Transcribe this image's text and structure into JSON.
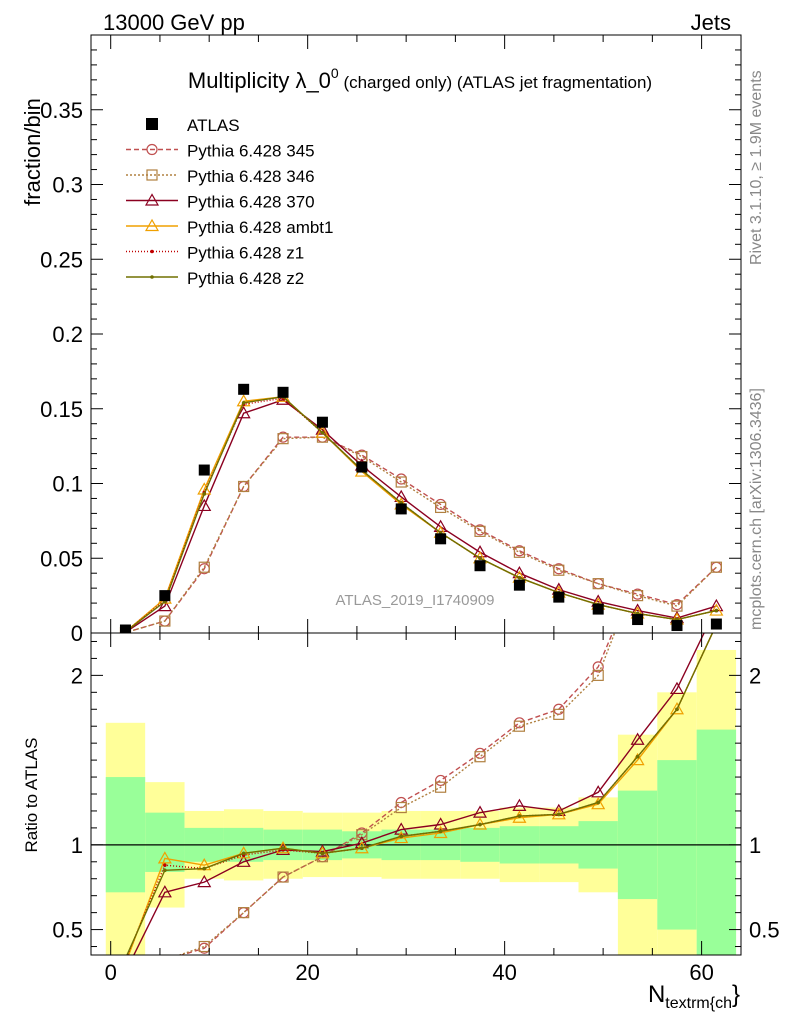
{
  "header": {
    "left": "13000 GeV pp",
    "right": "Jets"
  },
  "side_labels": {
    "rivet": "Rivet 3.1.10, ≥ 1.9M events",
    "mcplots": "mcplots.cern.ch [arXiv:1306.3436]"
  },
  "title": {
    "main": "Multiplicity λ_0",
    "sup": "0",
    "suffix": " (charged only) (ATLAS jet fragmentation)"
  },
  "analysis_id": "ATLAS_2019_I1740909",
  "colors": {
    "green_band": "#99ff99",
    "yellow_band": "#ffff99",
    "data": "#000000"
  },
  "chart_data": {
    "type": "line",
    "top_panel": {
      "ylabel": "fraction/bin",
      "ylim": [
        0,
        0.4
      ],
      "yticks": [
        0,
        0.05,
        0.1,
        0.15,
        0.2,
        0.25,
        0.3,
        0.35
      ],
      "ytick_labels": [
        "0",
        "0.05",
        "0.1",
        "0.15",
        "0.2",
        "0.25",
        "0.3",
        "0.35"
      ]
    },
    "ratio_panel": {
      "ylabel": "Ratio to ATLAS",
      "ylim": [
        0.35,
        2.25
      ],
      "yticks": [
        0.5,
        1,
        2
      ],
      "ytick_labels": [
        "0.5",
        "1",
        "2"
      ]
    },
    "xlabel": "N",
    "xlabel_sub": "textrm{ch",
    "xlabel_tail": "}",
    "xlim": [
      -2,
      64
    ],
    "xticks": [
      0,
      20,
      40,
      60
    ],
    "xtick_labels": [
      "0",
      "20",
      "40",
      "60"
    ],
    "bin_edges": [
      -0.5,
      3.5,
      7.5,
      11.5,
      15.5,
      19.5,
      23.5,
      27.5,
      31.5,
      35.5,
      39.5,
      43.5,
      47.5,
      51.5,
      55.5,
      59.5,
      63.5
    ],
    "x": [
      1.5,
      5.5,
      9.5,
      13.5,
      17.5,
      21.5,
      25.5,
      29.5,
      33.5,
      37.5,
      41.5,
      45.5,
      49.5,
      53.5,
      57.5,
      61.5
    ],
    "data": {
      "name": "ATLAS",
      "values": [
        0.002,
        0.025,
        0.109,
        0.163,
        0.161,
        0.141,
        0.111,
        0.083,
        0.063,
        0.045,
        0.032,
        0.024,
        0.016,
        0.009,
        0.005,
        0.006
      ]
    },
    "bands": {
      "green_upper": [
        1.4,
        1.19,
        1.1,
        1.1,
        1.09,
        1.09,
        1.08,
        1.09,
        1.09,
        1.1,
        1.11,
        1.11,
        1.14,
        1.32,
        1.5,
        1.68
      ],
      "green_lower": [
        0.72,
        0.84,
        0.9,
        0.9,
        0.91,
        0.91,
        0.92,
        0.91,
        0.91,
        0.9,
        0.89,
        0.89,
        0.86,
        0.68,
        0.5,
        0.32
      ],
      "yellow_upper": [
        1.72,
        1.37,
        1.2,
        1.21,
        1.2,
        1.19,
        1.19,
        1.2,
        1.2,
        1.2,
        1.22,
        1.22,
        1.28,
        1.65,
        1.9,
        2.15
      ],
      "yellow_lower": [
        0.28,
        0.63,
        0.8,
        0.79,
        0.8,
        0.81,
        0.81,
        0.8,
        0.8,
        0.8,
        0.78,
        0.78,
        0.72,
        0.35,
        0.1,
        0.0
      ]
    },
    "series": [
      {
        "name": "Pythia 6.428 345",
        "color": "#c05050",
        "dash": "5,3",
        "marker": "circle",
        "values": [
          0.0003,
          0.008,
          0.043,
          0.098,
          0.131,
          0.131,
          0.119,
          0.103,
          0.086,
          0.069,
          0.055,
          0.043,
          0.033,
          0.026,
          0.019,
          0.044
        ],
        "ratio": [
          0.15,
          0.32,
          0.39,
          0.6,
          0.81,
          0.93,
          1.07,
          1.25,
          1.38,
          1.54,
          1.72,
          1.8,
          2.05,
          2.6,
          3.5,
          7.0
        ]
      },
      {
        "name": "Pythia 6.428 346",
        "color": "#b08040",
        "dash": "2,2",
        "marker": "square",
        "values": [
          0.0003,
          0.008,
          0.044,
          0.098,
          0.13,
          0.131,
          0.118,
          0.101,
          0.084,
          0.068,
          0.054,
          0.042,
          0.033,
          0.025,
          0.018,
          0.044
        ],
        "ratio": [
          0.15,
          0.32,
          0.4,
          0.6,
          0.81,
          0.93,
          1.06,
          1.22,
          1.34,
          1.52,
          1.7,
          1.77,
          2.0,
          2.6,
          3.5,
          7.0
        ]
      },
      {
        "name": "Pythia 6.428 370",
        "color": "#8b0020",
        "dash": "",
        "marker": "triangle",
        "values": [
          0.0005,
          0.018,
          0.085,
          0.147,
          0.156,
          0.136,
          0.112,
          0.091,
          0.071,
          0.054,
          0.04,
          0.029,
          0.021,
          0.015,
          0.01,
          0.018
        ],
        "ratio": [
          0.25,
          0.72,
          0.78,
          0.9,
          0.97,
          0.96,
          1.01,
          1.09,
          1.12,
          1.19,
          1.23,
          1.2,
          1.31,
          1.62,
          1.92,
          2.4
        ]
      },
      {
        "name": "Pythia 6.428 ambt1",
        "color": "#f0a000",
        "dash": "",
        "marker": "triangle",
        "values": [
          0.0008,
          0.023,
          0.096,
          0.155,
          0.158,
          0.134,
          0.108,
          0.086,
          0.067,
          0.05,
          0.037,
          0.027,
          0.019,
          0.013,
          0.009,
          0.015
        ],
        "ratio": [
          0.3,
          0.92,
          0.88,
          0.95,
          0.98,
          0.95,
          0.98,
          1.04,
          1.07,
          1.12,
          1.16,
          1.18,
          1.24,
          1.5,
          1.8,
          2.3
        ]
      },
      {
        "name": "Pythia 6.428 z1",
        "color": "#c00000",
        "dash": "1,2",
        "marker": "dot",
        "values": [
          0.0008,
          0.022,
          0.094,
          0.153,
          0.157,
          0.134,
          0.109,
          0.087,
          0.067,
          0.05,
          0.037,
          0.027,
          0.019,
          0.013,
          0.009,
          0.015
        ],
        "ratio": [
          0.32,
          0.88,
          0.86,
          0.94,
          0.97,
          0.95,
          0.98,
          1.05,
          1.08,
          1.12,
          1.17,
          1.18,
          1.25,
          1.52,
          1.8,
          2.3
        ]
      },
      {
        "name": "Pythia 6.428 z2",
        "color": "#707000",
        "dash": "",
        "marker": "dot",
        "values": [
          0.0008,
          0.021,
          0.093,
          0.154,
          0.158,
          0.134,
          0.109,
          0.087,
          0.067,
          0.05,
          0.037,
          0.027,
          0.019,
          0.013,
          0.009,
          0.015
        ],
        "ratio": [
          0.33,
          0.85,
          0.86,
          0.95,
          0.98,
          0.95,
          0.98,
          1.05,
          1.08,
          1.12,
          1.17,
          1.18,
          1.25,
          1.52,
          1.8,
          2.3
        ]
      }
    ]
  }
}
